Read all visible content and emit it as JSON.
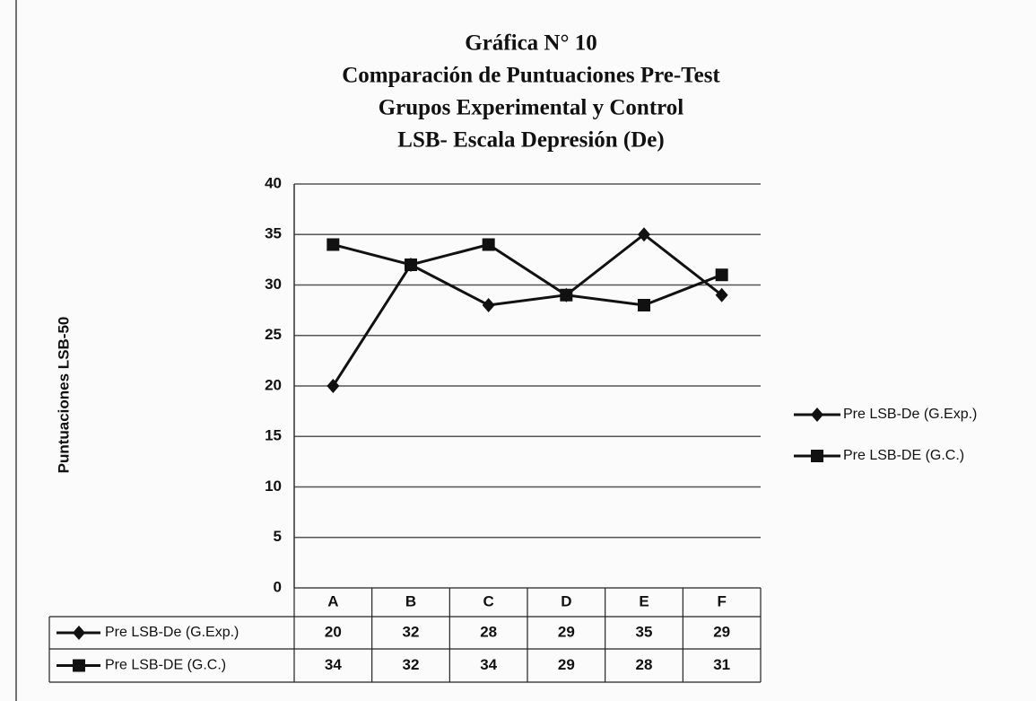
{
  "chart_data": {
    "type": "line",
    "title": "Gráfica N° 10",
    "subtitle": [
      "Comparación de Puntuaciones Pre-Test",
      "Grupos Experimental y Control",
      "LSB- Escala Depresión (De)"
    ],
    "y_label": "Puntuaciones LSB-50",
    "categories": [
      "A",
      "B",
      "C",
      "D",
      "E",
      "F"
    ],
    "series": [
      {
        "name": "Pre LSB-De (G.Exp.)",
        "color": "#111111",
        "marker": "diamond",
        "values": [
          20,
          32,
          28,
          29,
          35,
          29
        ]
      },
      {
        "name": "Pre LSB-DE (G.C.)",
        "color": "#111111",
        "marker": "square",
        "values": [
          34,
          32,
          34,
          29,
          28,
          31
        ]
      }
    ],
    "ylim": [
      0,
      40
    ],
    "yticks": [
      0,
      5,
      10,
      15,
      20,
      25,
      30,
      35,
      40
    ],
    "grid": true,
    "legend": "right",
    "data_table": true
  }
}
